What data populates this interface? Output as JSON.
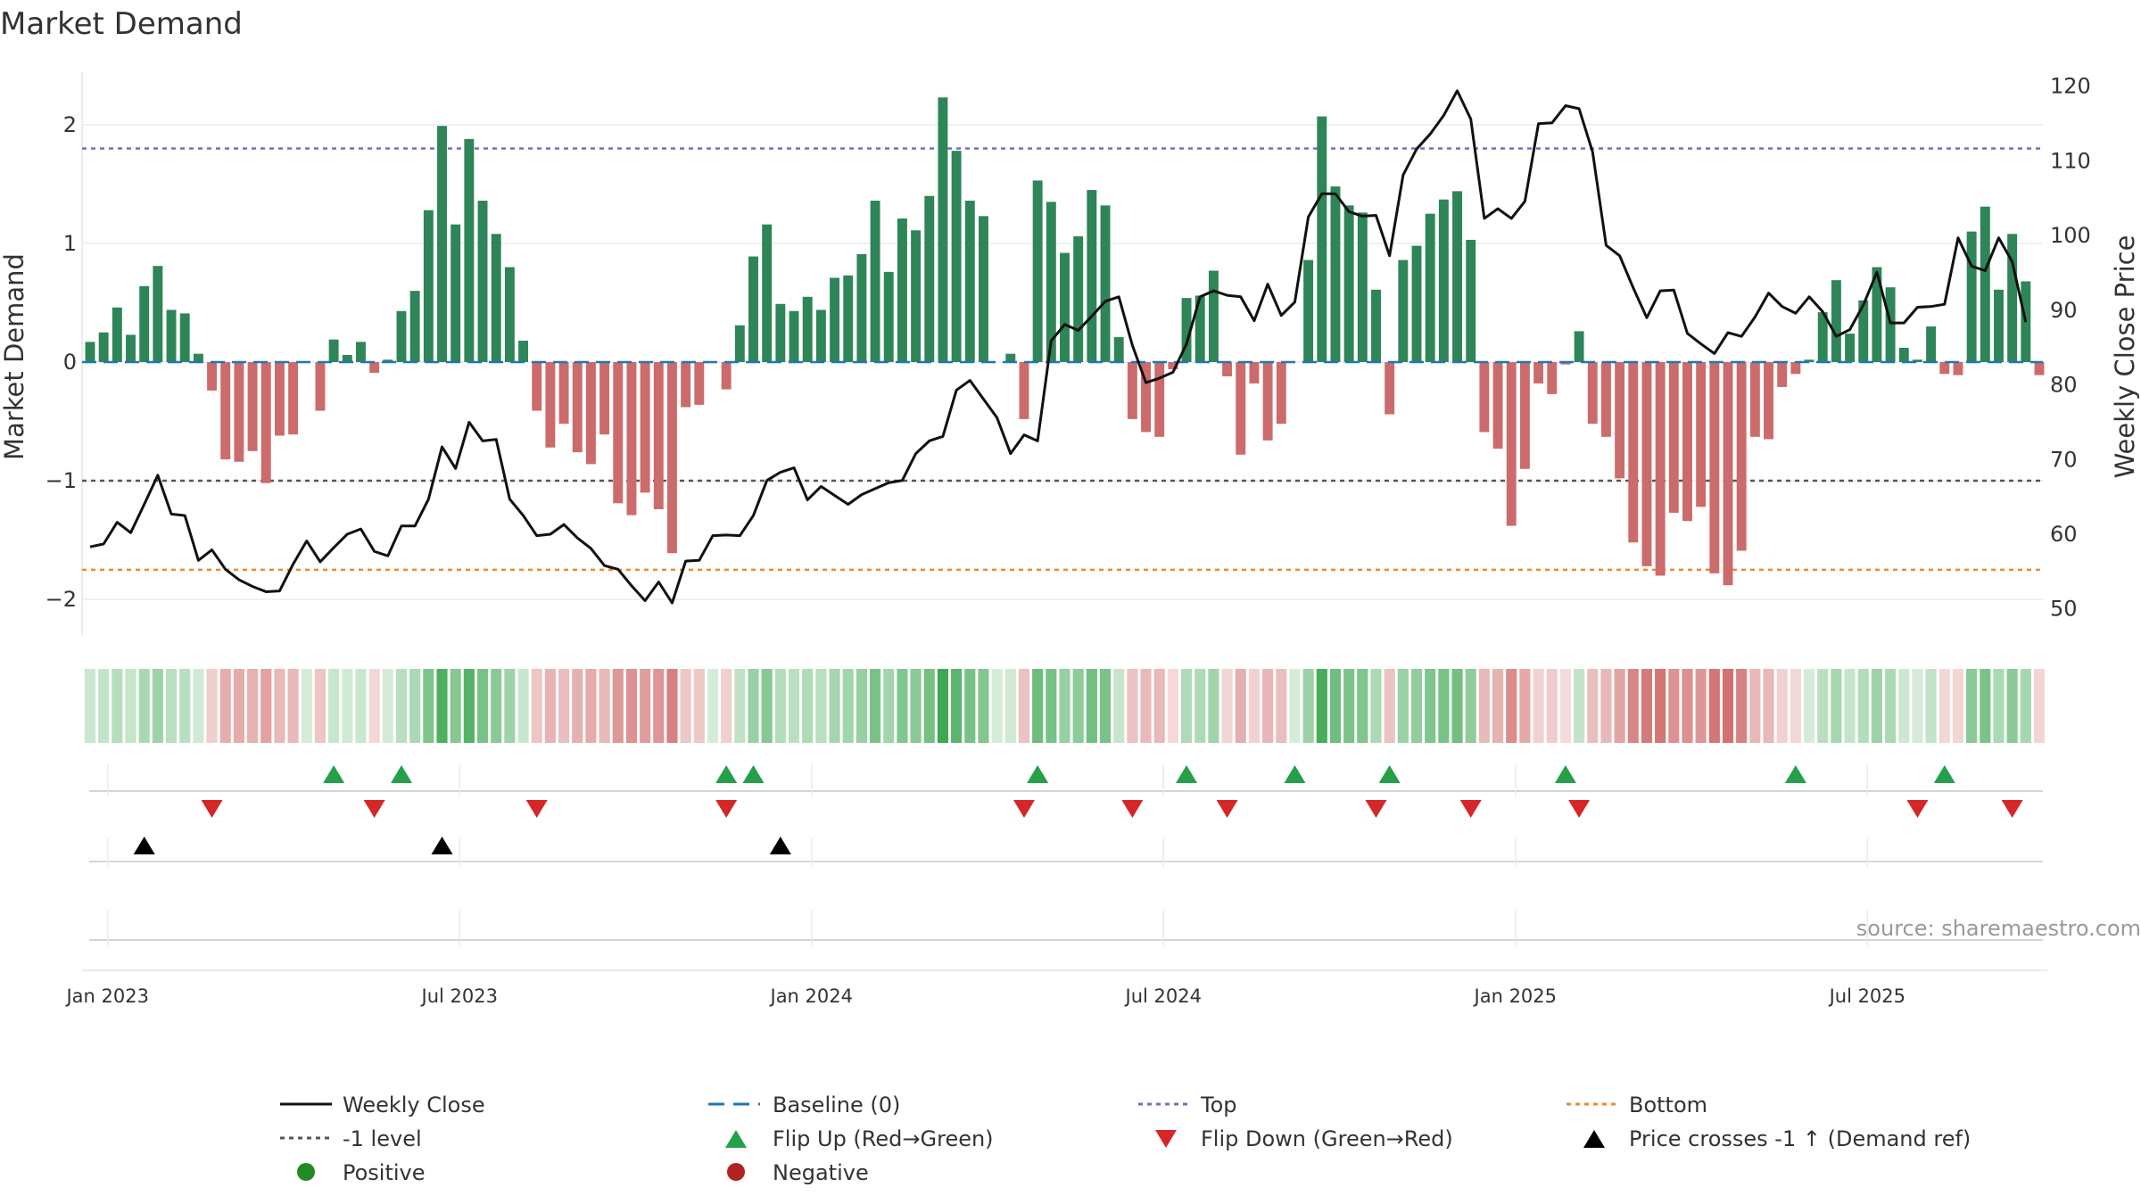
{
  "chart_data": {
    "type": "bar",
    "title": "Market Demand",
    "ylabel": "Market Demand",
    "y2label": "Weekly Close Price",
    "ylim": [
      -2.3,
      2.45
    ],
    "y2lim": [
      46.5,
      122
    ],
    "yticks": [
      "2",
      "1",
      "0",
      "−1",
      "−2"
    ],
    "y2ticks": [
      "120",
      "110",
      "100",
      "90",
      "80",
      "70",
      "60",
      "50"
    ],
    "xticks": [
      "Jan 2023",
      "Jul 2023",
      "Jan 2024",
      "Jul 2024",
      "Jan 2025",
      "Jul 2025"
    ],
    "reference_lines": {
      "top": 1.8,
      "bottom": -1.75,
      "minus_one": -1,
      "baseline": 0
    },
    "series": [
      {
        "name": "Market Demand",
        "values": [
          0.17,
          0.25,
          0.46,
          0.23,
          0.64,
          0.81,
          0.44,
          0.41,
          0.07,
          -0.24,
          -0.82,
          -0.84,
          -0.75,
          -1.02,
          -0.62,
          -0.61,
          0.0,
          -0.41,
          0.19,
          0.06,
          0.17,
          -0.09,
          0.02,
          0.43,
          0.6,
          1.28,
          1.99,
          1.16,
          1.88,
          1.36,
          1.08,
          0.8,
          0.18,
          -0.41,
          -0.72,
          -0.52,
          -0.76,
          -0.86,
          -0.61,
          -1.19,
          -1.29,
          -1.1,
          -1.24,
          -1.61,
          -0.38,
          -0.36,
          0.0,
          -0.23,
          0.31,
          0.89,
          1.16,
          0.49,
          0.43,
          0.55,
          0.44,
          0.71,
          0.73,
          0.91,
          1.36,
          0.76,
          1.21,
          1.11,
          1.4,
          2.23,
          1.78,
          1.36,
          1.23,
          0.0,
          0.07,
          -0.48,
          1.53,
          1.35,
          0.92,
          1.06,
          1.45,
          1.32,
          0.21,
          -0.48,
          -0.59,
          -0.63,
          -0.06,
          0.54,
          0.56,
          0.77,
          -0.12,
          -0.78,
          -0.18,
          -0.66,
          -0.52,
          0.0,
          0.86,
          2.07,
          1.48,
          1.32,
          1.26,
          0.61,
          -0.44,
          0.86,
          0.98,
          1.25,
          1.37,
          1.44,
          1.03,
          -0.59,
          -0.73,
          -1.38,
          -0.9,
          -0.18,
          -0.27,
          -0.02,
          0.26,
          -0.52,
          -0.63,
          -0.98,
          -1.52,
          -1.72,
          -1.8,
          -1.27,
          -1.34,
          -1.22,
          -1.78,
          -1.88,
          -1.59,
          -0.63,
          -0.65,
          -0.21,
          -0.1,
          0.02,
          0.42,
          0.69,
          0.24,
          0.52,
          0.8,
          0.63,
          0.12,
          0.02,
          0.3,
          -0.1,
          -0.11,
          1.1,
          1.31,
          0.61,
          1.08,
          0.68,
          -0.11
        ]
      },
      {
        "name": "Weekly Close",
        "values": [
          58.3,
          58.7,
          61.6,
          60.2,
          64.0,
          67.9,
          62.7,
          62.5,
          56.5,
          57.9,
          55.3,
          53.9,
          53.0,
          52.3,
          52.4,
          56.0,
          59.1,
          56.3,
          58.2,
          60.0,
          60.7,
          57.7,
          57.1,
          61.1,
          61.1,
          64.7,
          71.7,
          68.8,
          75.0,
          72.5,
          72.7,
          64.7,
          62.5,
          59.8,
          60.0,
          61.3,
          59.5,
          58.1,
          55.8,
          55.3,
          53.1,
          51.1,
          53.6,
          50.8,
          56.4,
          56.5,
          59.8,
          59.9,
          59.8,
          62.5,
          67.2,
          68.3,
          68.9,
          64.6,
          66.4,
          65.2,
          64.0,
          65.3,
          66.1,
          66.9,
          67.2,
          70.8,
          72.5,
          73.1,
          79.3,
          80.6,
          78.1,
          75.6,
          70.8,
          73.3,
          72.5,
          85.9,
          88.1,
          87.3,
          89.2,
          91.2,
          91.8,
          85.3,
          80.3,
          80.9,
          81.7,
          85.5,
          91.8,
          92.6,
          92.0,
          91.8,
          88.6,
          93.5,
          89.3,
          91.1,
          102.5,
          105.6,
          105.6,
          103.2,
          102.6,
          102.7,
          97.3,
          108.1,
          111.6,
          113.6,
          116.1,
          119.4,
          115.6,
          102.3,
          103.6,
          102.3,
          104.6,
          115.0,
          115.1,
          117.4,
          117.0,
          111.2,
          98.7,
          97.3,
          93.0,
          89.0,
          92.6,
          92.7,
          86.9,
          85.5,
          84.2,
          87.0,
          86.5,
          89.1,
          92.3,
          90.5,
          89.6,
          91.8,
          89.8,
          86.5,
          87.4,
          90.7,
          95.1,
          88.3,
          88.3,
          90.4,
          90.5,
          90.8,
          99.7,
          95.9,
          95.3,
          99.7,
          96.5,
          88.4
        ]
      },
      {
        "name": "Price crosses -1 ↑ (Demand ref)",
        "indices": [
          4,
          26,
          51
        ]
      },
      {
        "name": "Flip Up (Red→Green)",
        "indices": [
          18,
          23,
          47,
          49,
          70,
          81,
          89,
          96,
          109,
          126,
          137
        ]
      },
      {
        "name": "Flip Down (Green→Red)",
        "indices": [
          9,
          21,
          33,
          47,
          69,
          77,
          84,
          95,
          102,
          110,
          135,
          142
        ]
      }
    ]
  },
  "legend": {
    "weekly_close": "Weekly Close",
    "baseline": "Baseline (0)",
    "top": "Top",
    "bottom": "Bottom",
    "minus_one": "-1 level",
    "flip_up": "Flip Up (Red→Green)",
    "flip_down": "Flip Down (Green→Red)",
    "price_cross": "Price crosses -1 ↑ (Demand ref)",
    "positive": "Positive",
    "negative": "Negative"
  },
  "source": "source: sharemaestro.com",
  "colors": {
    "positive_bar": "#2e8557",
    "negative_bar": "#cc6b6b",
    "price_line": "#111111",
    "baseline": "#1f77b4",
    "top": "#7070c0",
    "bottom": "#ec8a2c",
    "minus_one": "#555555",
    "flip_up": "#24a04a",
    "flip_down": "#d62728",
    "price_cross": "#000000",
    "positive_dot": "#228b22",
    "negative_dot": "#b22222"
  }
}
